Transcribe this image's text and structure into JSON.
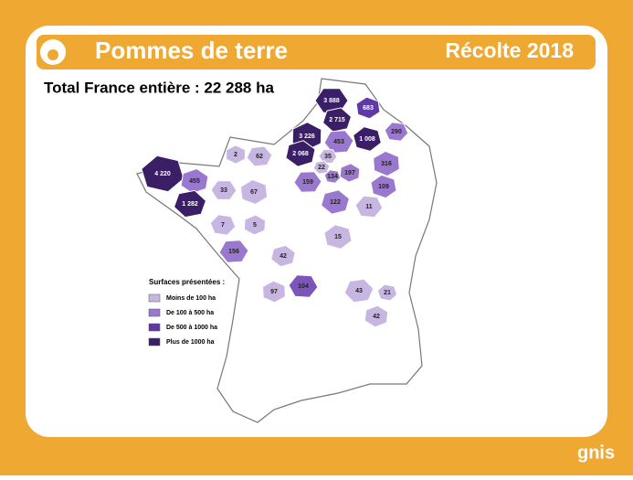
{
  "header": {
    "title": "Pommes de terre",
    "year": "Récolte 2018"
  },
  "total": "Total France entière : 22 288 ha",
  "legend": {
    "title": "Surfaces présentées :",
    "items": [
      {
        "label": "Moins de 100 ha",
        "color": "#c8b6e2"
      },
      {
        "label": "De 100 à 500 ha",
        "color": "#9a78cf"
      },
      {
        "label": "De 500 à 1000 ha",
        "color": "#5f3aa6"
      },
      {
        "label": "Plus de 1000 ha",
        "color": "#3a1e66"
      }
    ]
  },
  "map": {
    "regions": [
      {
        "label": "3 888",
        "color": "#3a1e66"
      },
      {
        "label": "683",
        "color": "#5f3aa6"
      },
      {
        "label": "2 715",
        "color": "#3a1e66"
      },
      {
        "label": "290",
        "color": "#9a78cf"
      },
      {
        "label": "3 226",
        "color": "#3a1e66"
      },
      {
        "label": "453",
        "color": "#9a78cf"
      },
      {
        "label": "1 008",
        "color": "#3a1e66"
      },
      {
        "label": "2 068",
        "color": "#3a1e66"
      },
      {
        "label": "35",
        "color": "#c8b6e2"
      },
      {
        "label": "316",
        "color": "#9a78cf"
      },
      {
        "label": "22",
        "color": "#c8b6e2"
      },
      {
        "label": "134",
        "color": "#9a78cf"
      },
      {
        "label": "197",
        "color": "#9a78cf"
      },
      {
        "label": "159",
        "color": "#9a78cf"
      },
      {
        "label": "109",
        "color": "#9a78cf"
      },
      {
        "label": "122",
        "color": "#9a78cf"
      },
      {
        "label": "11",
        "color": "#c8b6e2"
      },
      {
        "label": "2",
        "color": "#c8b6e2"
      },
      {
        "label": "62",
        "color": "#c8b6e2"
      },
      {
        "label": "4 220",
        "color": "#3a1e66"
      },
      {
        "label": "455",
        "color": "#9a78cf"
      },
      {
        "label": "33",
        "color": "#c8b6e2"
      },
      {
        "label": "67",
        "color": "#c8b6e2"
      },
      {
        "label": "1 282",
        "color": "#3a1e66"
      },
      {
        "label": "7",
        "color": "#c8b6e2"
      },
      {
        "label": "5",
        "color": "#c8b6e2"
      },
      {
        "label": "156",
        "color": "#9a78cf"
      },
      {
        "label": "15",
        "color": "#c8b6e2"
      },
      {
        "label": "42",
        "color": "#c8b6e2"
      },
      {
        "label": "104",
        "color": "#7b55bb"
      },
      {
        "label": "97",
        "color": "#c8b6e2"
      },
      {
        "label": "43",
        "color": "#c8b6e2"
      },
      {
        "label": "21",
        "color": "#c8b6e2"
      },
      {
        "label": "42",
        "color": "#c8b6e2"
      }
    ]
  },
  "footer": {
    "logo": "gnis"
  }
}
